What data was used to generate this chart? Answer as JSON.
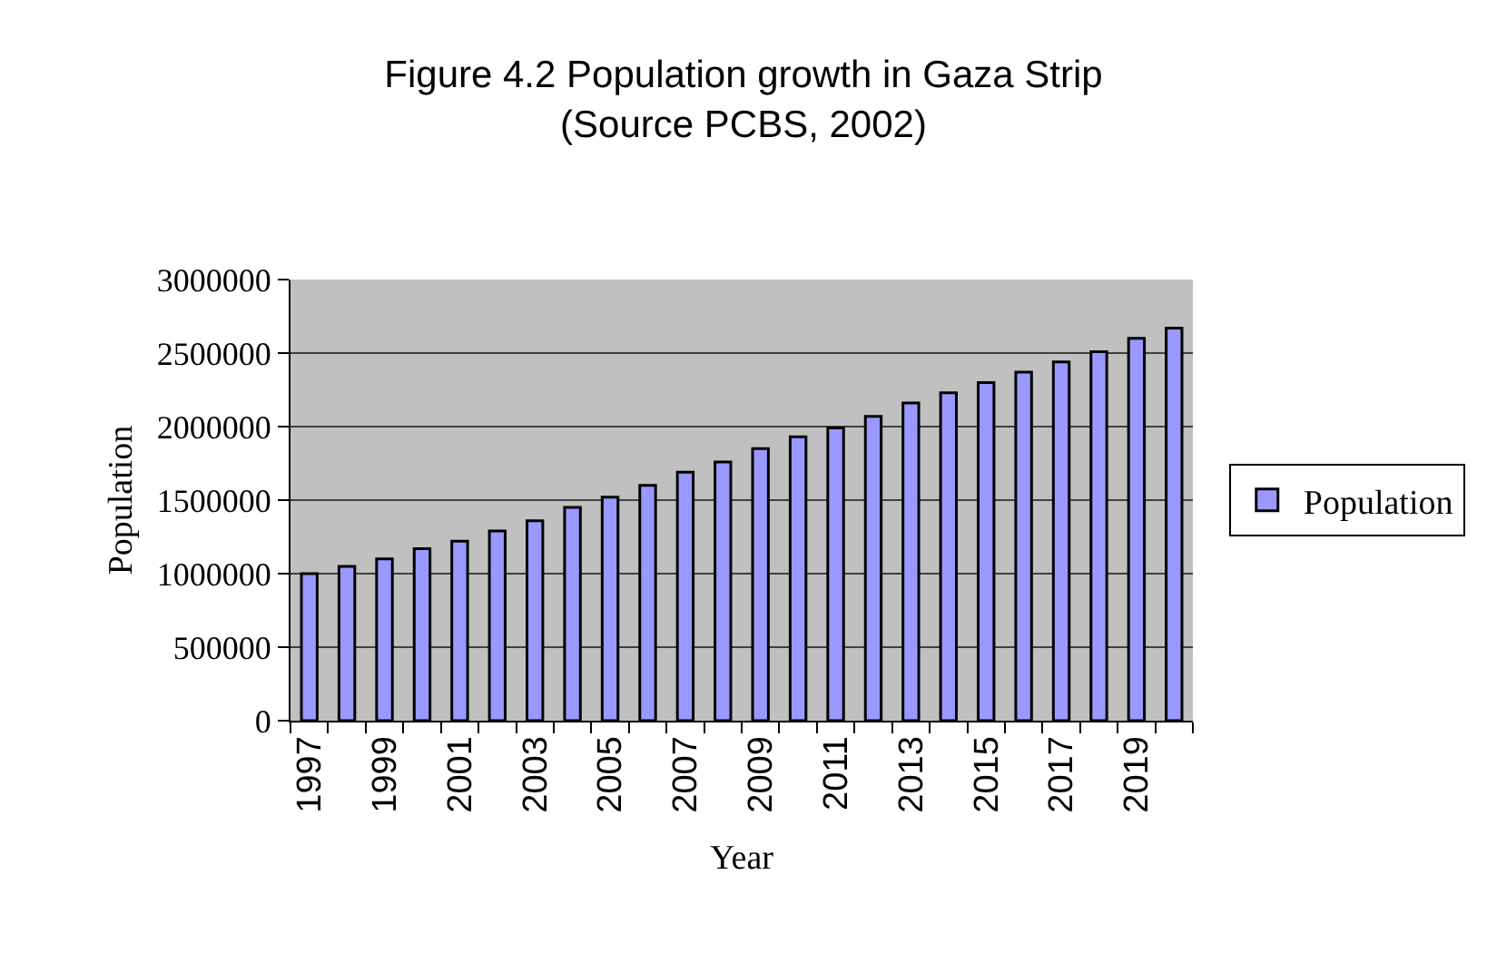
{
  "chart_data": {
    "type": "bar",
    "title": "Figure 4.2 Population growth in Gaza Strip",
    "subtitle": "(Source PCBS, 2002)",
    "xlabel": "Year",
    "ylabel": "Population",
    "categories": [
      "1997",
      null,
      "1999",
      null,
      "2001",
      null,
      "2003",
      null,
      "2005",
      null,
      "2007",
      null,
      "2009",
      null,
      "2011",
      null,
      "2013",
      null,
      "2015",
      null,
      "2017",
      null,
      "2019",
      null
    ],
    "series": [
      {
        "name": "Population",
        "color": "#9999ff",
        "values": [
          1000000,
          1050000,
          1100000,
          1170000,
          1220000,
          1290000,
          1360000,
          1450000,
          1520000,
          1600000,
          1690000,
          1760000,
          1850000,
          1930000,
          1990000,
          2070000,
          2160000,
          2230000,
          2300000,
          2370000,
          2440000,
          2510000,
          2600000,
          2670000
        ]
      }
    ],
    "ylim": [
      0,
      3000000
    ],
    "yticks": [
      0,
      500000,
      1000000,
      1500000,
      2000000,
      2500000,
      3000000
    ],
    "grid": "y",
    "legend": "right"
  }
}
